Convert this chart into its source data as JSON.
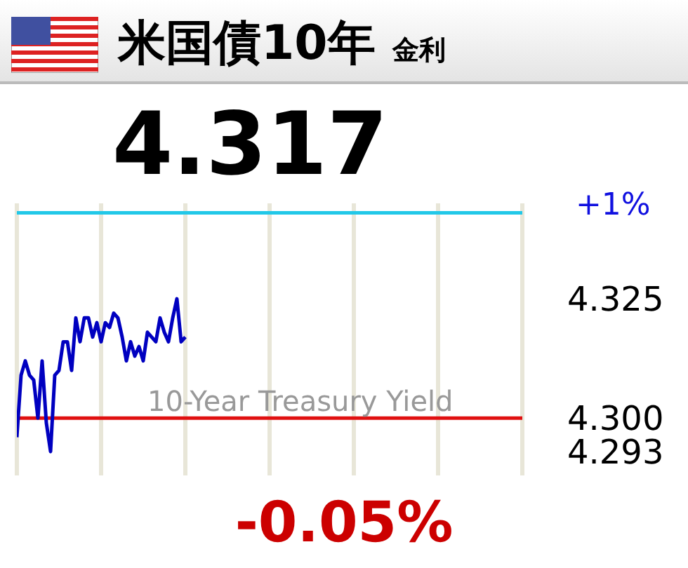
{
  "chart_data": {
    "type": "line",
    "title": "米国債10年",
    "subtitle": "金利",
    "annotations": [
      "4.317",
      "10-Year Treasury Yield",
      "-0.05%",
      "+1%"
    ],
    "categories": [
      null,
      null,
      null,
      null,
      null,
      null,
      null,
      null,
      null,
      null,
      null,
      null,
      null,
      null,
      null,
      null,
      null,
      null,
      null,
      null,
      null,
      null,
      null,
      null,
      null,
      null,
      null,
      null,
      null,
      null,
      null,
      null,
      null,
      null,
      null,
      null,
      null,
      null,
      null,
      null,
      null,
      null,
      null,
      null,
      null,
      null,
      null,
      null,
      null,
      null,
      null,
      null,
      null,
      null,
      null,
      null,
      null,
      null,
      null,
      null,
      null,
      null,
      null,
      null,
      null,
      null,
      null,
      null,
      null,
      null,
      null,
      null,
      null,
      null,
      null,
      null,
      null,
      null,
      null,
      null,
      null,
      null,
      null,
      null,
      null,
      null,
      null,
      null,
      null,
      null,
      null,
      null,
      null,
      null,
      null,
      null,
      null,
      null,
      null,
      null,
      null,
      null,
      null,
      null,
      null,
      null,
      null,
      null,
      null,
      null,
      null,
      null,
      null,
      null,
      null,
      null,
      null,
      null,
      null,
      null,
      null
    ],
    "series": [
      {
        "color": "#0000c0",
        "values": [
          4.296,
          4.309,
          4.312,
          4.309,
          4.308,
          4.3,
          4.312,
          4.299,
          4.293,
          4.309,
          4.31,
          4.316,
          4.316,
          4.31,
          4.321,
          4.316,
          4.321,
          4.321,
          4.317,
          4.32,
          4.316,
          4.32,
          4.319,
          4.322,
          4.321,
          4.317,
          4.312,
          4.316,
          4.313,
          4.315,
          4.312,
          4.318,
          4.317,
          4.316,
          4.321,
          4.318,
          4.316,
          4.321,
          4.325,
          4.316,
          4.317,
          null,
          null,
          null,
          null,
          null,
          null,
          null,
          null,
          null,
          null,
          null,
          null,
          null,
          null,
          null,
          null,
          null,
          null,
          null,
          null,
          null,
          null,
          null,
          null,
          null,
          null,
          null,
          null,
          null,
          null,
          null,
          null,
          null,
          null,
          null,
          null,
          null,
          null,
          null,
          null,
          null,
          null,
          null,
          null,
          null,
          null,
          null,
          null,
          null,
          null,
          null,
          null,
          null,
          null,
          null,
          null,
          null,
          null,
          null,
          null,
          null,
          null,
          null,
          null,
          null,
          null,
          null,
          null,
          null,
          null,
          null,
          null,
          null,
          null,
          null,
          null,
          null,
          null,
          null,
          null
        ]
      }
    ],
    "ylim": [
      4.288,
      4.345
    ],
    "yticks": [
      4.325,
      {
        "value": 4.3,
        "label": "4.300"
      },
      4.293
    ],
    "ref_lines": [
      {
        "axis": "y",
        "value": 4.343,
        "label": null,
        "color": "#22c8e8"
      },
      {
        "axis": "y",
        "value": 4.3,
        "label": null,
        "color": "#e01010"
      }
    ],
    "grid": "x",
    "tick_labels": "y",
    "legend": false
  }
}
